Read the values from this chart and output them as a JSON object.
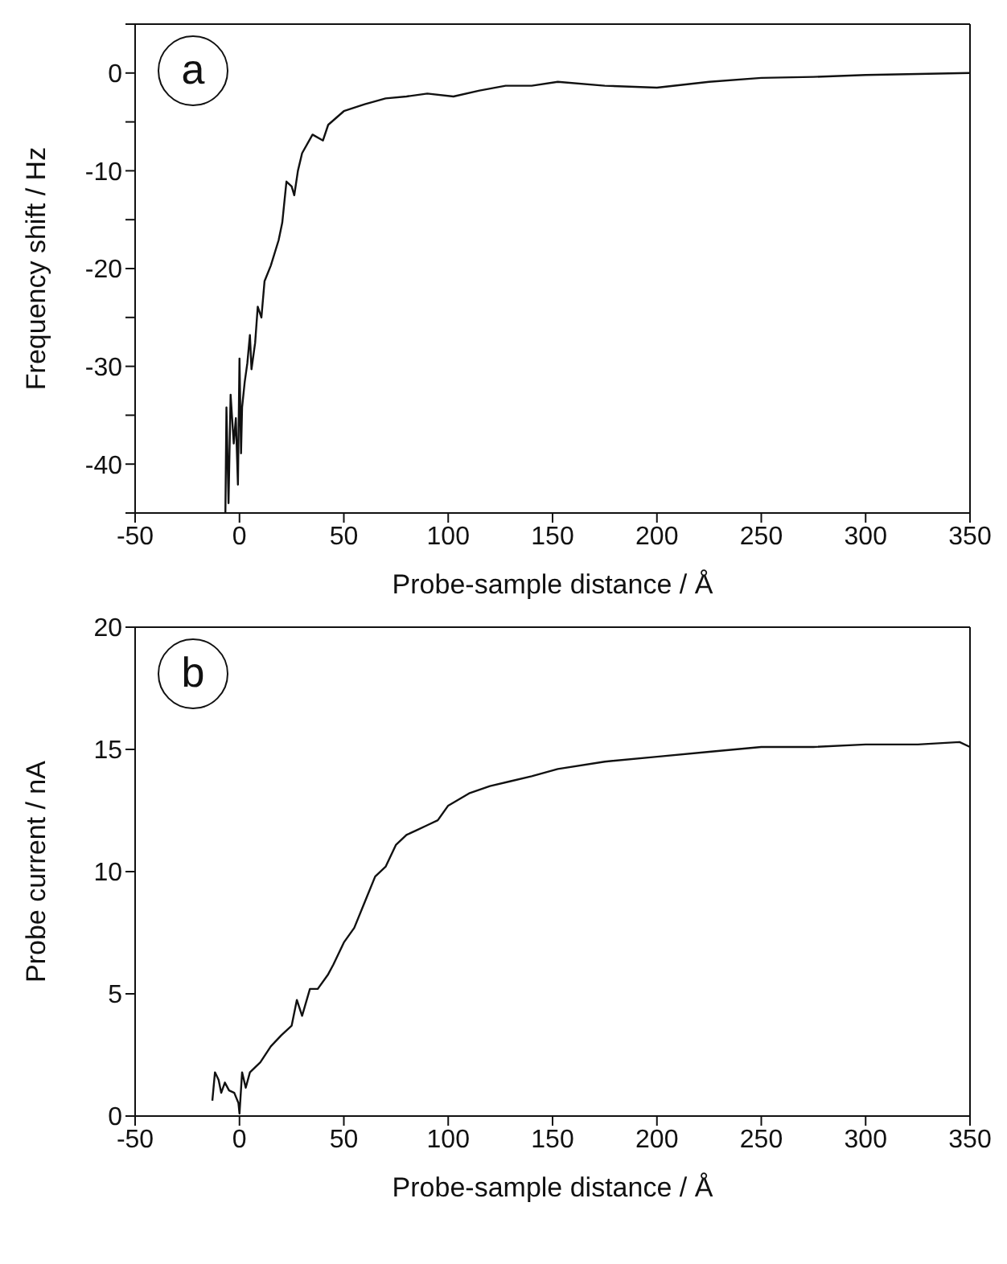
{
  "chart_data": [
    {
      "type": "line",
      "annotations": [
        "a"
      ],
      "xlabel": "Probe-sample distance / Å",
      "ylabel": "Frequency shift / Hz",
      "xlim": [
        -50,
        350
      ],
      "xticks": [
        -50,
        0,
        50,
        100,
        150,
        200,
        250,
        300,
        350
      ],
      "ylim": [
        -45,
        5
      ],
      "yticks": [
        {
          "value": -45,
          "label": null
        },
        -40,
        {
          "value": -35,
          "label": null
        },
        -30,
        {
          "value": -25,
          "label": null
        },
        -20,
        {
          "value": -15,
          "label": null
        },
        -10,
        {
          "value": -5,
          "label": null
        },
        0,
        {
          "value": 5,
          "label": null
        }
      ],
      "grid": false,
      "legend": false,
      "marker": "none",
      "series": [
        {
          "color": "#111111",
          "x": [
            -6.75,
            -6.25,
            -5.25,
            -4.25,
            -2.75,
            -1.75,
            -0.75,
            0,
            0.75,
            1.25,
            2.5,
            3.75,
            5,
            5.75,
            7.5,
            8.75,
            10.5,
            12,
            15,
            18.75,
            20.5,
            22.5,
            25,
            26.25,
            28,
            30,
            35,
            40,
            42.5,
            50,
            60,
            70,
            80,
            90,
            102.5,
            115,
            127.5,
            140,
            152.5,
            175,
            200,
            225,
            250,
            275,
            300,
            325,
            350
          ],
          "values": [
            -45,
            -34.2,
            -44,
            -32.9,
            -37.9,
            -35.3,
            -42.1,
            -29.2,
            -38.9,
            -34.2,
            -31.6,
            -29.7,
            -26.8,
            -30.3,
            -27.6,
            -23.9,
            -25,
            -21.3,
            -19.7,
            -17.1,
            -15.3,
            -11.1,
            -11.6,
            -12.5,
            -10,
            -8.2,
            -6.3,
            -6.9,
            -5.3,
            -3.9,
            -3.2,
            -2.6,
            -2.4,
            -2.1,
            -2.4,
            -1.8,
            -1.3,
            -1.3,
            -0.9,
            -1.3,
            -1.5,
            -0.9,
            -0.5,
            -0.4,
            -0.2,
            -0.1,
            0
          ]
        }
      ]
    },
    {
      "type": "line",
      "annotations": [
        "b"
      ],
      "xlabel": "Probe-sample distance / Å",
      "ylabel": "Probe current / nA",
      "xlim": [
        -50,
        350
      ],
      "xticks": [
        -50,
        0,
        50,
        100,
        150,
        200,
        250,
        300,
        350
      ],
      "ylim": [
        0,
        20
      ],
      "yticks": [
        0,
        5,
        10,
        15,
        20
      ],
      "grid": false,
      "legend": false,
      "marker": "none",
      "series": [
        {
          "color": "#111111",
          "x": [
            -13,
            -11.75,
            -10,
            -8.75,
            -7,
            -5,
            -2.5,
            -0.5,
            0,
            1.25,
            3,
            5,
            10,
            15,
            20,
            25,
            27.5,
            30,
            33.75,
            37.5,
            42.5,
            45,
            50,
            55,
            60,
            65,
            70,
            75,
            80,
            85,
            90,
            95,
            100,
            110,
            120,
            130,
            140,
            152.5,
            175,
            200,
            225,
            250,
            275,
            300,
            325,
            345,
            350
          ],
          "values": [
            0.63,
            1.79,
            1.48,
            0.95,
            1.37,
            1.05,
            0.95,
            0.53,
            0.1,
            1.79,
            1.16,
            1.79,
            2.2,
            2.85,
            3.3,
            3.7,
            4.75,
            4.1,
            5.2,
            5.2,
            5.8,
            6.2,
            7.1,
            7.7,
            8.75,
            9.8,
            10.2,
            11.1,
            11.5,
            11.7,
            11.9,
            12.1,
            12.7,
            13.2,
            13.5,
            13.7,
            13.9,
            14.2,
            14.5,
            14.7,
            14.9,
            15.1,
            15.1,
            15.2,
            15.2,
            15.3,
            15.1
          ]
        }
      ]
    }
  ]
}
